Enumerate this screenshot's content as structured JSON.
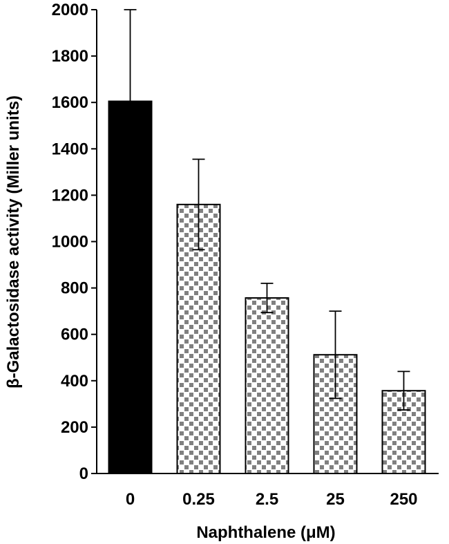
{
  "chart_data": {
    "type": "bar",
    "xlabel": "Naphthalene (μM)",
    "ylabel": "β-Galactosidase activity (Miller units)",
    "ylim": [
      0,
      2000
    ],
    "y_ticks": [
      "0",
      "200",
      "400",
      "600",
      "800",
      "1000",
      "1200",
      "1400",
      "1600",
      "1800",
      "2000"
    ],
    "categories": [
      "0",
      "0.25",
      "2.5",
      "25",
      "250"
    ],
    "values": [
      1605,
      1160,
      757,
      512,
      357
    ],
    "error_upper": [
      395,
      195,
      63,
      188,
      83
    ],
    "error_lower": [
      395,
      195,
      63,
      188,
      83
    ],
    "bar_styles": [
      "solid",
      "dotted",
      "dotted",
      "dotted",
      "dotted"
    ],
    "grid": false,
    "legend": "none",
    "colors": {
      "solid_bar": "#000000",
      "pattern_dot": "#808080",
      "pattern_bg": "#ffffff",
      "axis": "#000000"
    }
  }
}
